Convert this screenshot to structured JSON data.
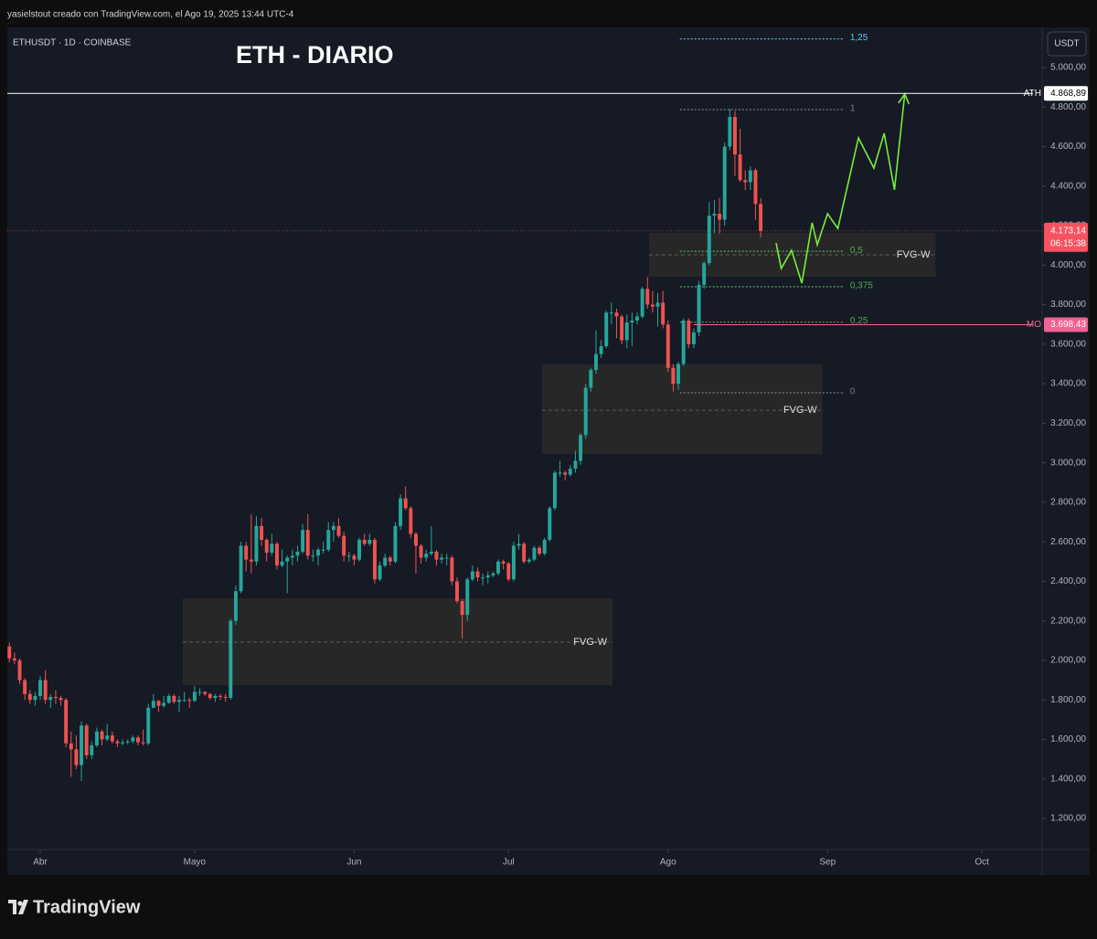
{
  "header": {
    "caption": "yasielstout creado con TradingView.com, el Ago 19, 2025 13:44 UTC-4"
  },
  "chart_data": {
    "type": "candlestick",
    "title": "ETH - DIARIO",
    "symbol": "ETHUSDT · 1D · COINBASE",
    "currency": "USDT",
    "up_color": "#26a69a",
    "down_color": "#ef5350",
    "x": [
      -6,
      -5,
      -4,
      -3,
      -2,
      -1,
      0,
      1,
      2,
      3,
      4,
      5,
      6,
      7,
      8,
      9,
      10,
      11,
      12,
      13,
      14,
      15,
      16,
      17,
      18,
      19,
      20,
      21,
      22,
      23,
      24,
      25,
      26,
      27,
      28,
      29,
      30,
      31,
      32,
      33,
      34,
      35,
      36,
      37,
      38,
      39,
      40,
      41,
      42,
      43,
      44,
      45,
      46,
      47,
      48,
      49,
      50,
      51,
      52,
      53,
      54,
      55,
      56,
      57,
      58,
      59,
      60,
      61,
      62,
      63,
      64,
      65,
      66,
      67,
      68,
      69,
      70,
      71,
      72,
      73,
      74,
      75,
      76,
      77,
      78,
      79,
      80,
      81,
      82,
      83,
      84,
      85,
      86,
      87,
      88,
      89,
      90,
      91,
      92,
      93,
      94,
      95,
      96,
      97,
      98,
      99,
      100,
      101,
      102,
      103,
      104,
      105,
      106,
      107,
      108,
      109,
      110,
      111,
      112,
      113,
      114,
      115,
      116,
      117,
      118,
      119,
      120,
      121,
      122,
      123,
      124,
      125,
      126,
      127,
      128,
      129,
      130,
      131,
      132,
      133,
      134,
      135,
      136,
      137,
      138,
      139,
      140
    ],
    "open": [
      2070,
      2010,
      2000,
      1900,
      1830,
      1800,
      1820,
      1900,
      1800,
      1815,
      1810,
      1800,
      1580,
      1550,
      1470,
      1670,
      1520,
      1570,
      1640,
      1600,
      1620,
      1590,
      1580,
      1585,
      1590,
      1610,
      1585,
      1580,
      1760,
      1795,
      1770,
      1785,
      1820,
      1790,
      1800,
      1800,
      1795,
      1840,
      1840,
      1830,
      1810,
      1820,
      1815,
      1810,
      2200,
      2350,
      2580,
      2510,
      2500,
      2680,
      2610,
      2545,
      2590,
      2480,
      2500,
      2520,
      2530,
      2550,
      2660,
      2530,
      2530,
      2560,
      2560,
      2660,
      2680,
      2630,
      2530,
      2530,
      2510,
      2610,
      2590,
      2610,
      2410,
      2480,
      2520,
      2500,
      2680,
      2820,
      2770,
      2640,
      2580,
      2520,
      2540,
      2550,
      2510,
      2520,
      2520,
      2400,
      2300,
      2230,
      2410,
      2450,
      2420,
      2420,
      2430,
      2440,
      2500,
      2490,
      2410,
      2580,
      2590,
      2500,
      2510,
      2570,
      2540,
      2610,
      2770,
      2950,
      2950,
      2940,
      2970,
      3010,
      3140,
      3380,
      3470,
      3550,
      3590,
      3760,
      3760,
      3740,
      3620,
      3710,
      3720,
      3740,
      3880,
      3800,
      3790,
      3810,
      3700,
      3480,
      3400,
      3500,
      3720,
      3600,
      3660,
      3900,
      4010,
      4250,
      4260,
      4230,
      4600,
      4750,
      4560,
      4430,
      4420,
      4480,
      4310
    ],
    "high": [
      2090,
      2040,
      2010,
      1910,
      1850,
      1840,
      1920,
      1950,
      1830,
      1850,
      1820,
      1810,
      1640,
      1620,
      1690,
      1680,
      1590,
      1660,
      1650,
      1680,
      1640,
      1600,
      1600,
      1600,
      1620,
      1620,
      1650,
      1780,
      1830,
      1800,
      1820,
      1830,
      1830,
      1820,
      1840,
      1810,
      1870,
      1860,
      1845,
      1835,
      1830,
      1830,
      1830,
      2210,
      2380,
      2600,
      2600,
      2740,
      2730,
      2720,
      2620,
      2640,
      2600,
      2560,
      2530,
      2560,
      2580,
      2690,
      2740,
      2560,
      2570,
      2600,
      2700,
      2700,
      2720,
      2650,
      2550,
      2540,
      2620,
      2640,
      2640,
      2620,
      2500,
      2540,
      2530,
      2700,
      2840,
      2880,
      2780,
      2650,
      2590,
      2560,
      2680,
      2560,
      2540,
      2540,
      2530,
      2420,
      2310,
      2420,
      2480,
      2470,
      2440,
      2450,
      2450,
      2510,
      2510,
      2500,
      2600,
      2640,
      2600,
      2520,
      2580,
      2580,
      2620,
      2780,
      2960,
      3010,
      2960,
      2990,
      3060,
      3150,
      3400,
      3480,
      3670,
      3620,
      3770,
      3810,
      3780,
      3750,
      3750,
      3760,
      3760,
      3890,
      3940,
      3870,
      3860,
      3870,
      3720,
      3500,
      3510,
      3730,
      3730,
      3680,
      3920,
      4020,
      4320,
      4330,
      4340,
      4620,
      4790,
      4780,
      4690,
      4480,
      4500,
      4490,
      4340
    ],
    "low": [
      1990,
      1980,
      1880,
      1800,
      1780,
      1770,
      1800,
      1780,
      1760,
      1780,
      1770,
      1560,
      1410,
      1450,
      1390,
      1500,
      1500,
      1560,
      1570,
      1590,
      1580,
      1560,
      1570,
      1575,
      1580,
      1570,
      1570,
      1570,
      1760,
      1740,
      1760,
      1780,
      1780,
      1740,
      1790,
      1760,
      1790,
      1820,
      1820,
      1800,
      1790,
      1800,
      1790,
      1800,
      2180,
      2340,
      2450,
      2440,
      2480,
      2580,
      2500,
      2530,
      2460,
      2470,
      2340,
      2480,
      2500,
      2540,
      2510,
      2500,
      2480,
      2540,
      2550,
      2600,
      2620,
      2500,
      2500,
      2480,
      2500,
      2580,
      2580,
      2390,
      2400,
      2470,
      2480,
      2490,
      2660,
      2760,
      2620,
      2440,
      2490,
      2500,
      2530,
      2480,
      2490,
      2480,
      2380,
      2290,
      2110,
      2200,
      2400,
      2400,
      2380,
      2390,
      2420,
      2430,
      2460,
      2400,
      2400,
      2560,
      2490,
      2490,
      2500,
      2530,
      2530,
      2600,
      2760,
      2930,
      2910,
      2930,
      2950,
      2990,
      3120,
      3360,
      3450,
      3530,
      3580,
      3700,
      3630,
      3600,
      3580,
      3590,
      3700,
      3730,
      3780,
      3760,
      3690,
      3680,
      3460,
      3360,
      3370,
      3490,
      3580,
      3580,
      3640,
      3880,
      4000,
      4160,
      4160,
      4200,
      4580,
      4450,
      4420,
      4380,
      4380,
      4230,
      4140
    ],
    "close": [
      2010,
      2000,
      1900,
      1830,
      1800,
      1820,
      1900,
      1800,
      1815,
      1810,
      1800,
      1580,
      1550,
      1470,
      1670,
      1520,
      1570,
      1640,
      1600,
      1620,
      1590,
      1580,
      1585,
      1590,
      1610,
      1585,
      1580,
      1760,
      1795,
      1770,
      1785,
      1820,
      1790,
      1800,
      1800,
      1795,
      1840,
      1840,
      1830,
      1810,
      1820,
      1815,
      1810,
      2200,
      2350,
      2580,
      2510,
      2500,
      2680,
      2610,
      2545,
      2590,
      2480,
      2500,
      2520,
      2530,
      2550,
      2660,
      2530,
      2530,
      2560,
      2560,
      2660,
      2680,
      2630,
      2530,
      2530,
      2510,
      2610,
      2590,
      2610,
      2410,
      2480,
      2520,
      2500,
      2680,
      2820,
      2770,
      2640,
      2580,
      2520,
      2540,
      2550,
      2510,
      2520,
      2520,
      2400,
      2300,
      2230,
      2410,
      2450,
      2420,
      2420,
      2430,
      2440,
      2500,
      2490,
      2410,
      2580,
      2590,
      2500,
      2510,
      2570,
      2540,
      2610,
      2770,
      2950,
      2950,
      2940,
      2970,
      3010,
      3140,
      3380,
      3470,
      3550,
      3590,
      3760,
      3760,
      3740,
      3620,
      3710,
      3720,
      3740,
      3880,
      3800,
      3790,
      3810,
      3700,
      3480,
      3400,
      3500,
      3720,
      3600,
      3660,
      3900,
      4010,
      4250,
      4260,
      4230,
      4600,
      4750,
      4560,
      4430,
      4420,
      4480,
      4310,
      4173.14
    ],
    "xlim": [
      -6.4,
      194.7
    ],
    "xticks": [
      {
        "value": 0,
        "label": "Abr"
      },
      {
        "value": 30,
        "label": "Mayo"
      },
      {
        "value": 61,
        "label": "Jun"
      },
      {
        "value": 91,
        "label": "Jul"
      },
      {
        "value": 122,
        "label": "Ago"
      },
      {
        "value": 153,
        "label": "Sep"
      },
      {
        "value": 183,
        "label": "Oct"
      }
    ],
    "ylim": [
      1043,
      5203
    ],
    "yticks": [
      {
        "value": 1200,
        "label": "1.200,00"
      },
      {
        "value": 1400,
        "label": "1.400,00"
      },
      {
        "value": 1600,
        "label": "1.600,00"
      },
      {
        "value": 1800,
        "label": "1.800,00"
      },
      {
        "value": 2000,
        "label": "2.000,00"
      },
      {
        "value": 2200,
        "label": "2.200,00"
      },
      {
        "value": 2400,
        "label": "2.400,00"
      },
      {
        "value": 2600,
        "label": "2.600,00"
      },
      {
        "value": 2800,
        "label": "2.800,00"
      },
      {
        "value": 3000,
        "label": "3.000,00"
      },
      {
        "value": 3200,
        "label": "3.200,00"
      },
      {
        "value": 3400,
        "label": "3.400,00"
      },
      {
        "value": 3600,
        "label": "3.600,00"
      },
      {
        "value": 3800,
        "label": "3.800,00"
      },
      {
        "value": 4000,
        "label": "4.000,00"
      },
      {
        "value": 4200,
        "label": "4.200,00"
      },
      {
        "value": 4400,
        "label": "4.400,00"
      },
      {
        "value": 4600,
        "label": "4.600,00"
      },
      {
        "value": 4800,
        "label": "4.800,00"
      },
      {
        "value": 5000,
        "label": "5.000,00"
      }
    ],
    "zones": [
      {
        "label": "FVG-W",
        "x": [
          27.7,
          111.2
        ],
        "y": [
          1875,
          2314
        ],
        "mid": 2092
      },
      {
        "label": "FVG-W",
        "x": [
          97.5,
          152
        ],
        "y": [
          3045,
          3498
        ],
        "mid": 3266
      },
      {
        "label": "FVG-W",
        "x": [
          118.3,
          174
        ],
        "y": [
          3941,
          4163
        ],
        "mid": 4052
      }
    ],
    "fib": {
      "x": [
        124.3,
        156.3
      ],
      "levels": [
        {
          "value": 5145,
          "label": "1,25",
          "color": "#4dd0e1"
        },
        {
          "value": 4787,
          "label": "1",
          "color": "#787b86"
        },
        {
          "value": 4070,
          "label": "0,5",
          "color": "#4caf50"
        },
        {
          "value": 3891,
          "label": "0,375",
          "color": "#4caf50"
        },
        {
          "value": 3712,
          "label": "0,25",
          "color": "#4caf50"
        },
        {
          "value": 3354,
          "label": "0",
          "color": "#787b86"
        }
      ]
    },
    "levels": [
      {
        "label": "ATH",
        "value": 4868.89,
        "value_label": "4.868,89",
        "color": "#ffffff",
        "text_color": "#000000"
      },
      {
        "label": "MO",
        "value": 3698.43,
        "value_label": "3.698,43",
        "color": "#f06292",
        "text_color": "#ffffff",
        "x0": 127
      }
    ],
    "last_price": {
      "value": 4173.14,
      "value_label": "4.173,14",
      "countdown": "06:15:38",
      "color": "#f7525f"
    },
    "projection": {
      "color": "#76ee3a",
      "x": [
        143,
        144,
        146,
        148,
        150,
        151,
        153,
        155,
        159,
        162,
        164,
        166,
        168
      ],
      "y": [
        4112,
        3983,
        4075,
        3909,
        4214,
        4103,
        4260,
        4186,
        4644,
        4491,
        4667,
        4381,
        4866
      ]
    }
  },
  "footer": {
    "brand": "TradingView"
  }
}
